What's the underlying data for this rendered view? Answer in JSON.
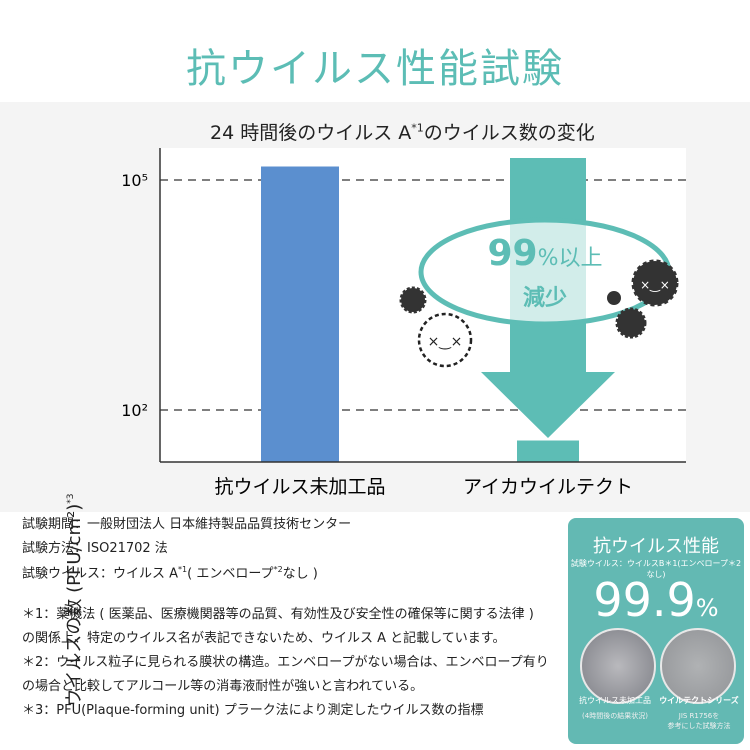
{
  "title": "抗ウイルス性能試験",
  "chart_data": {
    "type": "bar",
    "title": "24 時間後のウイルス A",
    "title_note": "*1",
    "title_suffix": "のウイルス数の変化",
    "ylabel": "ウイルスの数 (PFU/cm²)",
    "ylabel_note": "*3",
    "yscale": "log",
    "yticks": [
      "10⁵",
      "10²"
    ],
    "ytick_values": [
      100000,
      100
    ],
    "categories": [
      "抗ウイルス未加工品",
      "アイカウイルテクト"
    ],
    "values": [
      150000,
      40
    ],
    "bar_colors": [
      "#5b8fcf",
      "#5dbdb5"
    ],
    "grid": "dashed",
    "annotation": {
      "percent": "99",
      "percent_sign": "%",
      "line1_suffix": "以上",
      "line2": "減少"
    }
  },
  "notes": {
    "period": "試験期間：一般財団法人 日本維持製品品質技術センター",
    "method": "試験方法：ISO21702 法",
    "virus_prefix": "試験ウイルス：ウイルス A",
    "virus_mark": "*1",
    "virus_mid": "( エンベロープ",
    "virus_mark2": "*2",
    "virus_end": "なし )",
    "n1a": "＊1：薬機法 ( 医薬品、医療機関器等の品質、有効性及び安全性の確保等に関する法律 )",
    "n1b": "の関係上、特定のウイルス名が表記できないため、ウイルス A と記載しています。",
    "n2a": "＊2：ウイルス粒子に見られる膜状の構造。エンベロープがない場合は、エンベロープ有り",
    "n2b": "の場合と比較してアルコール等の消毒液耐性が強いと言われている。",
    "n3": "＊3：PFU(Plaque-forming unit) プラーク法により測定したウイルス数の指標"
  },
  "card": {
    "title": "抗ウイルス性能",
    "subtitle": "試験ウイルス：ウイルスB＊1(エンベロープ＊2なし)",
    "percent": "99.9",
    "percent_sign": "%",
    "left_label": "抗ウイルス未加工品",
    "left_sub": "(4時間後の結果状況)",
    "right_label": "ウイルテクトシリーズ",
    "right_sub1": "JIS R1756を",
    "right_sub2": "参考にした試験方法"
  }
}
